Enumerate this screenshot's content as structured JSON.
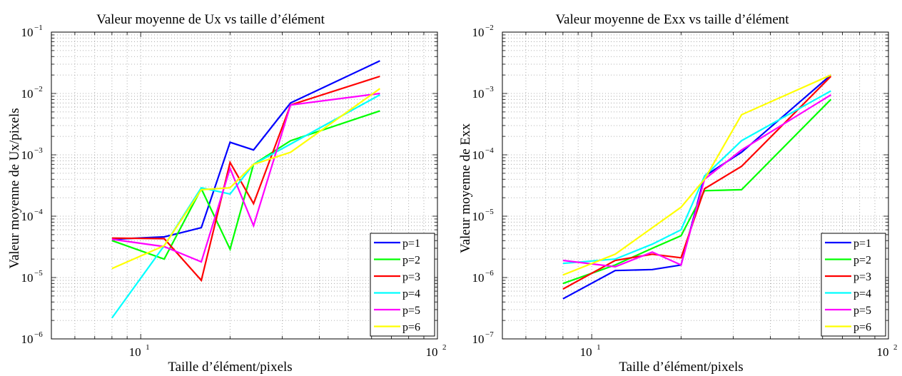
{
  "chart_data": [
    {
      "type": "line",
      "title": "Valeur moyenne de Ux vs taille d’élément",
      "xlabel": "Taille d’élément/pixels",
      "ylabel": "Valeur moyenne de Ux/pixels",
      "xscale": "log",
      "yscale": "log",
      "xlim": [
        5,
        100
      ],
      "ylim": [
        1e-06,
        0.1
      ],
      "x_ticks": [
        {
          "v": 10,
          "base": "10",
          "exp": "1"
        },
        {
          "v": 100,
          "base": "10",
          "exp": "2"
        }
      ],
      "y_ticks": [
        {
          "v": 1e-06,
          "base": "10",
          "exp": "−6"
        },
        {
          "v": 1e-05,
          "base": "10",
          "exp": "−5"
        },
        {
          "v": 0.0001,
          "base": "10",
          "exp": "−4"
        },
        {
          "v": 0.001,
          "base": "10",
          "exp": "−3"
        },
        {
          "v": 0.01,
          "base": "10",
          "exp": "−2"
        },
        {
          "v": 0.1,
          "base": "10",
          "exp": "−1"
        }
      ],
      "grid": true,
      "legend_position": "bottom-right",
      "x": [
        8,
        12,
        16,
        20,
        24,
        32,
        64
      ],
      "series": [
        {
          "name": "p=1",
          "color": "#0000ff",
          "values": [
            4.2e-05,
            4.6e-05,
            6.5e-05,
            0.0016,
            0.0012,
            0.007,
            0.034
          ]
        },
        {
          "name": "p=2",
          "color": "#00ff00",
          "values": [
            4e-05,
            2e-05,
            0.00028,
            2.9e-05,
            0.0007,
            0.0017,
            0.0052
          ]
        },
        {
          "name": "p=3",
          "color": "#ff0000",
          "values": [
            4.4e-05,
            4.3e-05,
            9e-06,
            0.00075,
            0.00016,
            0.0065,
            0.019
          ]
        },
        {
          "name": "p=4",
          "color": "#00ffff",
          "values": [
            2.2e-06,
            3.3e-05,
            0.00029,
            0.00023,
            0.0007,
            0.0015,
            0.0095
          ]
        },
        {
          "name": "p=5",
          "color": "#ff00ff",
          "values": [
            4.2e-05,
            3.2e-05,
            1.8e-05,
            0.0006,
            7e-05,
            0.0065,
            0.01
          ]
        },
        {
          "name": "p=6",
          "color": "#ffff00",
          "values": [
            1.4e-05,
            3.3e-05,
            0.00027,
            0.00029,
            0.0007,
            0.0011,
            0.012
          ]
        }
      ]
    },
    {
      "type": "line",
      "title": "Valeur moyenne de Exx vs taille d’élément",
      "xlabel": "Taille d’élément/pixels",
      "ylabel": "Valeur moyenne de Exx",
      "xscale": "log",
      "yscale": "log",
      "xlim": [
        5,
        100
      ],
      "ylim": [
        1e-07,
        0.01
      ],
      "x_ticks": [
        {
          "v": 10,
          "base": "10",
          "exp": "1"
        },
        {
          "v": 100,
          "base": "10",
          "exp": "2"
        }
      ],
      "y_ticks": [
        {
          "v": 1e-07,
          "base": "10",
          "exp": "−7"
        },
        {
          "v": 1e-06,
          "base": "10",
          "exp": "−6"
        },
        {
          "v": 1e-05,
          "base": "10",
          "exp": "−5"
        },
        {
          "v": 0.0001,
          "base": "10",
          "exp": "−4"
        },
        {
          "v": 0.001,
          "base": "10",
          "exp": "−3"
        },
        {
          "v": 0.01,
          "base": "10",
          "exp": "−2"
        }
      ],
      "grid": true,
      "legend_position": "bottom-right",
      "x": [
        8,
        12,
        16,
        20,
        24,
        32,
        64
      ],
      "series": [
        {
          "name": "p=1",
          "color": "#0000ff",
          "values": [
            4.5e-07,
            1.3e-06,
            1.35e-06,
            1.6e-06,
            4.5e-05,
            0.00011,
            0.002
          ]
        },
        {
          "name": "p=2",
          "color": "#00ff00",
          "values": [
            8e-07,
            1.6e-06,
            3e-06,
            4.8e-06,
            2.6e-05,
            2.7e-05,
            0.0008
          ]
        },
        {
          "name": "p=3",
          "color": "#ff0000",
          "values": [
            6.5e-07,
            1.9e-06,
            2.4e-06,
            2.1e-06,
            2.8e-05,
            6.5e-05,
            0.0019
          ]
        },
        {
          "name": "p=4",
          "color": "#00ffff",
          "values": [
            1.7e-06,
            2e-06,
            3.5e-06,
            6e-06,
            4.5e-05,
            0.00017,
            0.0011
          ]
        },
        {
          "name": "p=5",
          "color": "#ff00ff",
          "values": [
            1.9e-06,
            1.5e-06,
            2.6e-06,
            1.6e-06,
            4e-05,
            0.00012,
            0.00095
          ]
        },
        {
          "name": "p=6",
          "color": "#ffff00",
          "values": [
            1.1e-06,
            2.4e-06,
            6.5e-06,
            1.4e-05,
            4e-05,
            0.00045,
            0.002
          ]
        }
      ]
    }
  ]
}
